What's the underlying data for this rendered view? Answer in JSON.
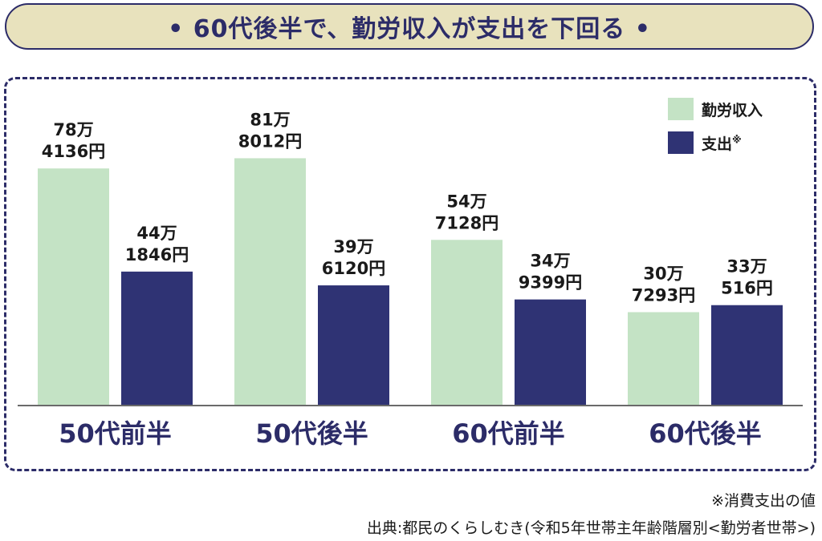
{
  "title": "• 60代後半で、勤労収入が支出を下回る •",
  "legend": {
    "income_label": "勤労収入",
    "expense_label": "支出",
    "expense_note_mark": "※"
  },
  "footnote": "※消費支出の値",
  "source": "出典:都民のくらしむき(令和5年世帯主年齢階層別<勤労者世帯>)",
  "colors": {
    "income": "#c4e3c5",
    "expense": "#2f3374",
    "accent": "#2c2c68",
    "title_bg": "#e8e2bd"
  },
  "chart_data": {
    "type": "bar",
    "title": "• 60代後半で、勤労収入が支出を下回る •",
    "categories": [
      "50代前半",
      "50代後半",
      "60代前半",
      "60代後半"
    ],
    "series": [
      {
        "name": "勤労収入",
        "values": [
          784136,
          818012,
          547128,
          307293
        ],
        "labels": [
          [
            "78万",
            "4136円"
          ],
          [
            "81万",
            "8012円"
          ],
          [
            "54万",
            "7128円"
          ],
          [
            "30万",
            "7293円"
          ]
        ]
      },
      {
        "name": "支出※",
        "values": [
          441846,
          396120,
          349399,
          330516
        ],
        "labels": [
          [
            "44万",
            "1846円"
          ],
          [
            "39万",
            "6120円"
          ],
          [
            "34万",
            "9399円"
          ],
          [
            "33万",
            "516円"
          ]
        ]
      }
    ],
    "ylim": [
      0,
      1000000
    ],
    "grid": false,
    "legend_position": "top-right"
  }
}
